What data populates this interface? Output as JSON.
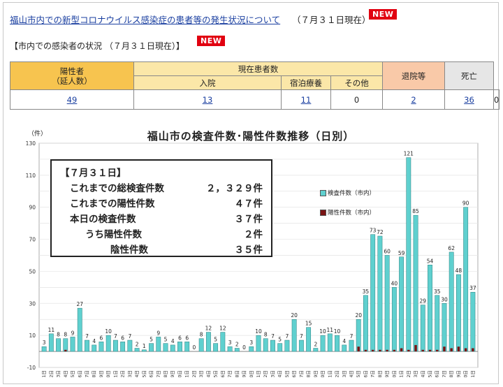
{
  "header": {
    "title_link": "福山市内での新型コロナウイルス感染症の患者等の発生状況について",
    "title_date": "（７月３１日現在）",
    "new_badge": "NEW"
  },
  "section": {
    "subtitle": "【市内での感染者の状況 （７月３１日現在）】",
    "new_badge": "NEW"
  },
  "table": {
    "headers": {
      "positives": "陽性者\n（延人数）",
      "current": "現在患者数",
      "hospital": "入院",
      "hotel": "宿泊療養",
      "other": "その他",
      "discharged": "退院等",
      "deaths": "死亡"
    },
    "values": {
      "positives": "49",
      "current": "13",
      "hospital": "11",
      "hotel": "0",
      "other": "2",
      "discharged": "36",
      "deaths": "0"
    }
  },
  "chart_data": {
    "type": "bar",
    "title": "福山市の検査件数･陽性件数推移（日別）",
    "ylabel": "（件）",
    "ylim": [
      -10,
      130
    ],
    "yticks": [
      -10,
      10,
      30,
      50,
      70,
      90,
      110,
      130
    ],
    "categories": [
      "6月1日",
      "6月2日",
      "6月3日",
      "6月4日",
      "6月5日",
      "6月6日",
      "6月7日",
      "6月8日",
      "6月9日",
      "6月10日",
      "6月11日",
      "6月12日",
      "6月13日",
      "6月14日",
      "6月15日",
      "6月16日",
      "6月17日",
      "6月18日",
      "6月19日",
      "6月20日",
      "6月21日",
      "6月22日",
      "6月23日",
      "6月24日",
      "6月25日",
      "6月26日",
      "6月27日",
      "6月28日",
      "6月29日",
      "6月30日",
      "7月1日",
      "7月2日",
      "7月3日",
      "7月4日",
      "7月5日",
      "7月6日",
      "7月7日",
      "7月8日",
      "7月9日",
      "7月10日",
      "7月11日",
      "7月12日",
      "7月13日",
      "7月14日",
      "7月15日",
      "7月16日",
      "7月17日",
      "7月18日",
      "7月19日",
      "7月20日",
      "7月21日",
      "7月22日",
      "7月23日",
      "7月24日",
      "7月25日",
      "7月26日",
      "7月27日",
      "7月28日",
      "7月29日",
      "7月30日",
      "7月31日"
    ],
    "series": [
      {
        "name": "検査件数（市内）",
        "color": "#5fd0cf",
        "values": [
          3,
          11,
          8,
          8,
          9,
          27,
          7,
          4,
          6,
          10,
          7,
          6,
          7,
          2,
          1,
          5,
          9,
          5,
          4,
          6,
          6,
          0,
          8,
          12,
          5,
          12,
          3,
          2,
          0,
          3,
          10,
          8,
          7,
          5,
          7,
          20,
          7,
          15,
          2,
          10,
          11,
          10,
          4,
          7,
          20,
          35,
          73,
          72,
          60,
          40,
          59,
          121,
          85,
          29,
          54,
          35,
          30,
          62,
          48,
          90,
          37
        ]
      },
      {
        "name": "陽性件数（市内）",
        "color": "#7a1414",
        "values": [
          0,
          0,
          0,
          1,
          0,
          0,
          0,
          0,
          0,
          0,
          0,
          0,
          0,
          0,
          0,
          0,
          0,
          0,
          0,
          0,
          0,
          0,
          0,
          0,
          0,
          0,
          0,
          0,
          0,
          0,
          0,
          0,
          0,
          0,
          0,
          0,
          0,
          0,
          0,
          0,
          0,
          0,
          0,
          0,
          3,
          1,
          1,
          1,
          1,
          1,
          2,
          1,
          4,
          1,
          1,
          1,
          3,
          2,
          3,
          2,
          2
        ]
      }
    ],
    "labels": [
      "3",
      "11",
      "8",
      "8",
      "9",
      "27",
      "7",
      "4",
      "6",
      "10",
      "7",
      "6",
      "7",
      "2",
      "1",
      "5",
      "9",
      "5",
      "4",
      "6",
      "6",
      "0",
      "8",
      "12",
      "5",
      "12",
      "3",
      "2",
      "0",
      "3",
      "10",
      "8",
      "7",
      "5",
      "7",
      "20",
      "7",
      "15",
      "2",
      "10",
      "11",
      "10",
      "4",
      "7",
      "20",
      "35",
      "73",
      "72",
      "60",
      "40",
      "59",
      "121",
      "85",
      "29",
      "54",
      "35",
      "30",
      "62",
      "48",
      "90",
      "37"
    ],
    "y_unit": "（件）",
    "legend": [
      "検査件数（市内）",
      "陽性件数（市内）"
    ],
    "legend_position": "right"
  },
  "infobox": {
    "heading": "【７月３１日】",
    "rows": [
      {
        "label": "これまでの総検査件数",
        "value": "２，３２９件"
      },
      {
        "label": "これまでの陽性件数",
        "value": "４７件"
      },
      {
        "label": "本日の検査件数",
        "value": "３７件"
      },
      {
        "label": "うち陽性件数",
        "value": "２件"
      },
      {
        "label": "陰性件数",
        "value": "３５件"
      }
    ]
  }
}
